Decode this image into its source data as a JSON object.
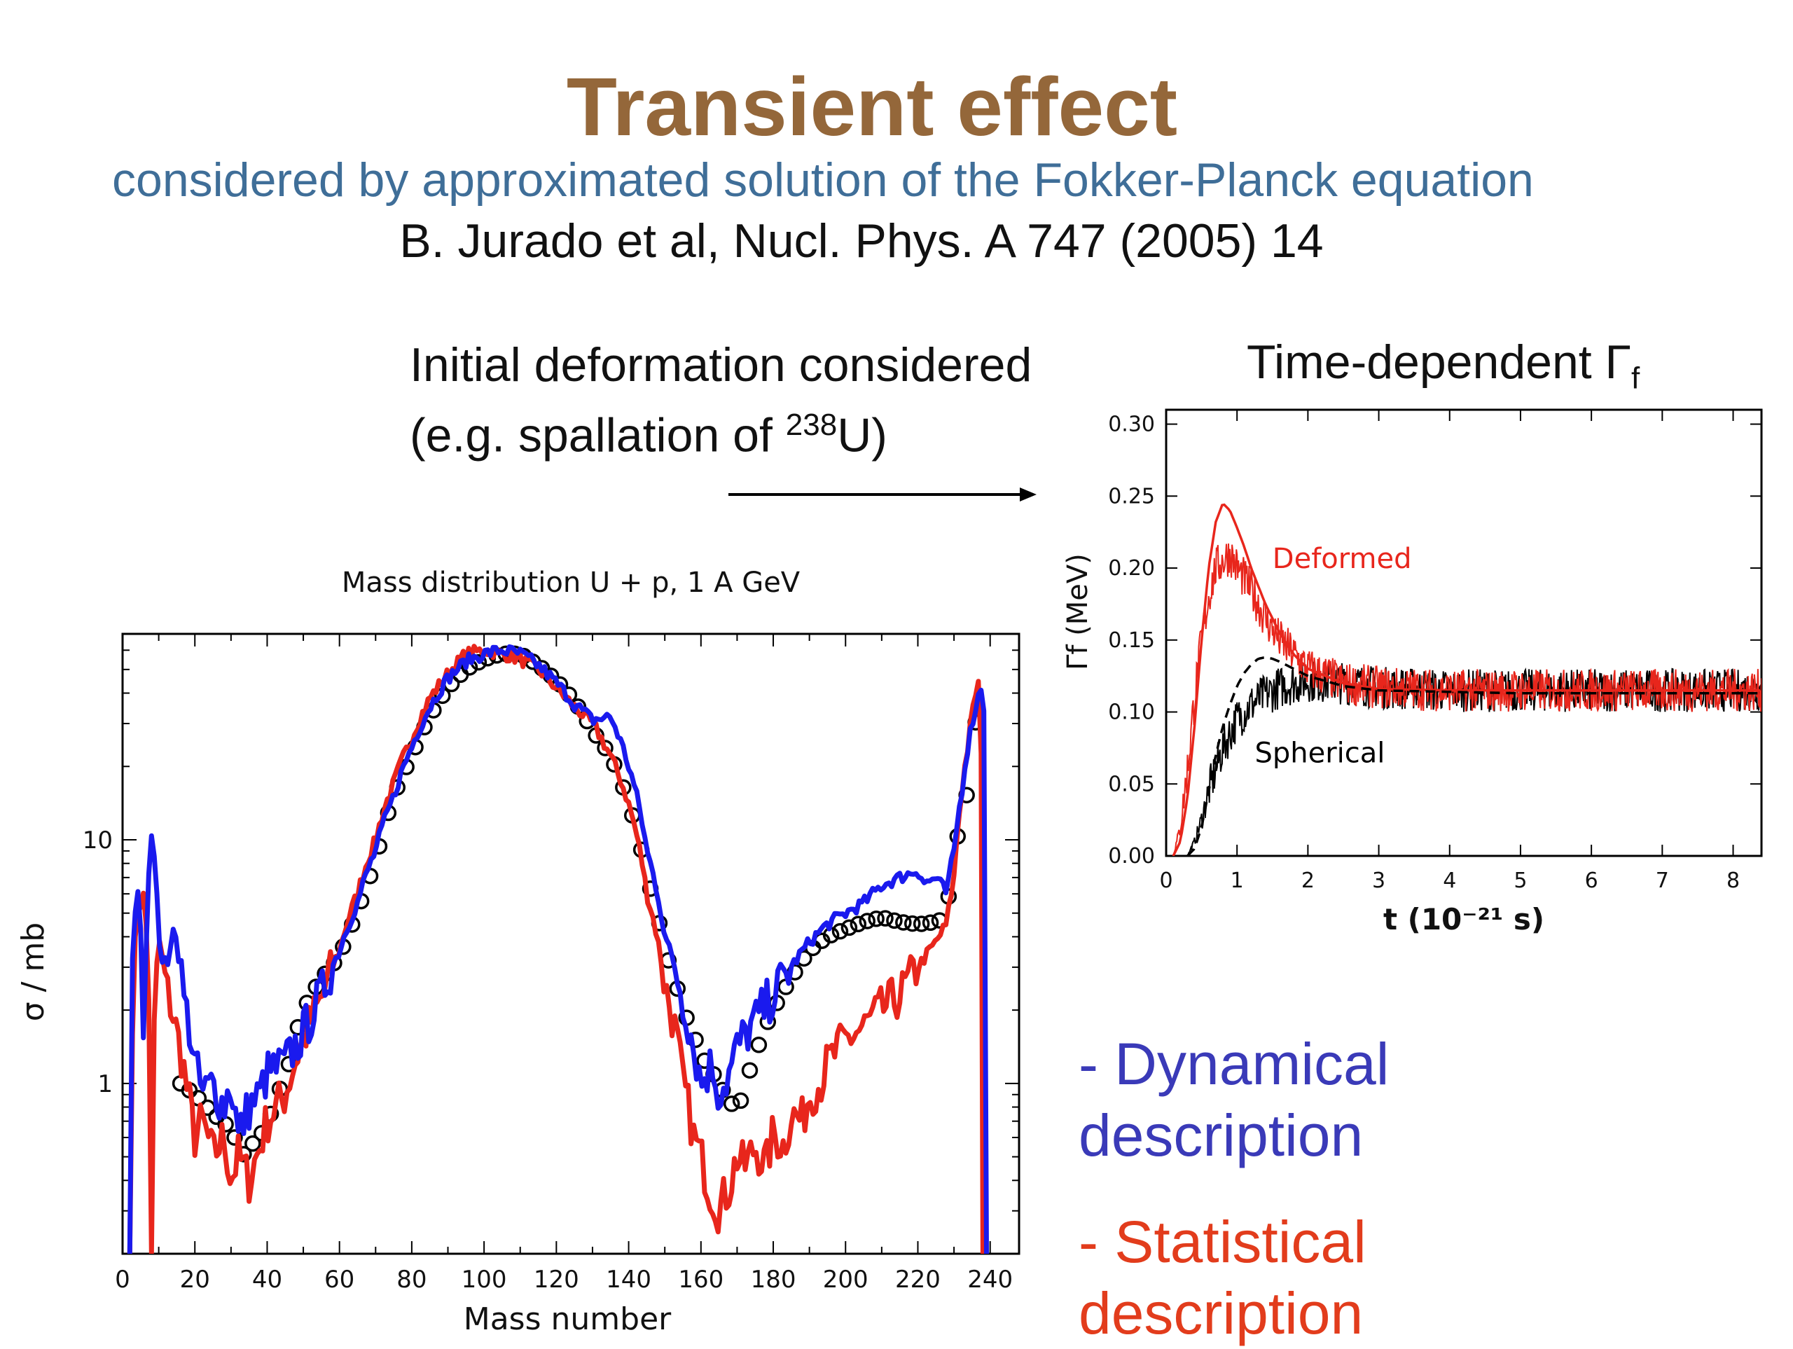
{
  "slide": {
    "title": "Transient effect",
    "subtitle": "considered by approximated solution of the Fokker-Planck equation",
    "reference": "B. Jurado et al,  Nucl. Phys. A 747 (2005) 14",
    "note_line1": "Initial deformation considered",
    "note_line2_pre": "(e.g. spallation of ",
    "note_line2_sup": "238",
    "note_line2_post": "U)",
    "gamma_title": "Time-dependent Γ",
    "gamma_title_sub": "f",
    "legend_dynamical_1": "- Dynamical",
    "legend_dynamical_2": "description",
    "legend_statistical_1": "- Statistical",
    "legend_statistical_2": "description"
  },
  "colors": {
    "title": "#94673a",
    "subtitle": "#3f6e98",
    "dynamical": "#3a3ab8",
    "statistical": "#e23c1c"
  },
  "chart_data": [
    {
      "type": "line",
      "title": "Mass distribution U + p, 1 A GeV",
      "xlabel": "Mass number",
      "ylabel": "σ / mb",
      "xlim": [
        0,
        248
      ],
      "ylim": [
        0.2,
        70
      ],
      "log_y": true,
      "x_ticks": [
        0,
        20,
        40,
        60,
        80,
        100,
        120,
        140,
        160,
        180,
        200,
        220,
        240
      ],
      "y_ticks": [
        {
          "v": 1,
          "label": "1"
        },
        {
          "v": 10,
          "label": "10"
        }
      ],
      "series": [
        {
          "style": "circles",
          "color": "#000000",
          "x": [
            16,
            20,
            25,
            30,
            33,
            35,
            38,
            42,
            46,
            50,
            55,
            60,
            65,
            70,
            75,
            80,
            85,
            90,
            95,
            100,
            105,
            110,
            115,
            120,
            125,
            130,
            135,
            140,
            145,
            150,
            155,
            160,
            165,
            168,
            171,
            175,
            180,
            185,
            190,
            195,
            200,
            205,
            210,
            215,
            220,
            225,
            228,
            230,
            233,
            235,
            238
          ],
          "y": [
            1.0,
            0.9,
            0.75,
            0.65,
            0.5,
            0.55,
            0.6,
            0.8,
            1.2,
            2.0,
            2.7,
            3.3,
            5.0,
            8.0,
            15,
            22,
            32,
            42,
            50,
            55,
            58,
            58,
            52,
            45,
            37,
            28,
            22,
            14,
            7,
            3.5,
            2.0,
            1.3,
            1.0,
            0.82,
            0.85,
            1.3,
            2.0,
            2.7,
            3.5,
            4.0,
            4.3,
            4.6,
            4.8,
            4.6,
            4.5,
            4.6,
            4.8,
            9,
            13,
            22,
            47
          ]
        },
        {
          "style": "line",
          "color": "#e8261c",
          "name": "Statistical",
          "x": [
            2,
            4,
            6,
            8,
            10,
            12,
            15,
            18,
            20,
            22,
            25,
            28,
            30,
            32,
            35,
            38,
            40,
            45,
            50,
            55,
            60,
            65,
            70,
            75,
            80,
            85,
            90,
            95,
            100,
            105,
            110,
            115,
            120,
            125,
            130,
            135,
            140,
            145,
            150,
            155,
            158,
            160,
            162,
            165,
            168,
            170,
            172,
            175,
            178,
            180,
            183,
            185,
            188,
            190,
            193,
            195,
            200,
            205,
            210,
            215,
            218,
            220,
            222,
            225,
            228,
            230,
            232,
            234,
            236,
            237,
            238
          ],
          "y": [
            0.2,
            5,
            6,
            0.2,
            4,
            2.5,
            1.6,
            0.9,
            0.6,
            0.7,
            0.5,
            0.6,
            0.4,
            0.5,
            0.4,
            0.55,
            0.7,
            0.9,
            1.5,
            2.2,
            3.5,
            6,
            10,
            17,
            26,
            38,
            48,
            58,
            60,
            58,
            55,
            50,
            42,
            35,
            30,
            22,
            14,
            6,
            2.5,
            1.0,
            0.6,
            0.5,
            0.38,
            0.3,
            0.38,
            0.5,
            0.45,
            0.55,
            0.45,
            0.62,
            0.55,
            0.75,
            0.7,
            0.9,
            1.0,
            1.2,
            1.5,
            1.7,
            2.0,
            2.3,
            2.7,
            3.0,
            3.3,
            3.8,
            4.5,
            7,
            15,
            25,
            40,
            45,
            0.2
          ]
        },
        {
          "style": "line",
          "color": "#1a1aee",
          "name": "Dynamical",
          "x": [
            2,
            4,
            6,
            8,
            10,
            12,
            14,
            17,
            20,
            22,
            25,
            28,
            30,
            32,
            35,
            38,
            40,
            45,
            50,
            55,
            60,
            65,
            70,
            75,
            80,
            85,
            90,
            95,
            100,
            105,
            110,
            115,
            120,
            125,
            130,
            135,
            140,
            145,
            150,
            155,
            158,
            160,
            163,
            165,
            168,
            170,
            175,
            180,
            185,
            190,
            195,
            200,
            205,
            210,
            215,
            220,
            222,
            225,
            228,
            230,
            232,
            234,
            236,
            238,
            239
          ],
          "y": [
            0.2,
            7,
            1.2,
            11,
            4,
            2.5,
            4.5,
            2.2,
            1.2,
            0.9,
            1.0,
            0.8,
            1.0,
            0.6,
            0.8,
            0.9,
            1.1,
            1.2,
            1.6,
            2.3,
            3.5,
            5.5,
            9,
            15,
            24,
            35,
            46,
            54,
            58,
            60,
            58,
            52,
            44,
            36,
            31,
            32,
            20,
            9,
            4,
            2.2,
            1.4,
            1.0,
            1.2,
            0.9,
            1.1,
            1.4,
            1.8,
            2.3,
            3.0,
            3.8,
            4.5,
            5.0,
            5.5,
            6.5,
            7.0,
            7.5,
            6.6,
            7.0,
            6.0,
            9,
            15,
            25,
            35,
            45,
            0.2
          ]
        }
      ]
    },
    {
      "type": "line",
      "xlabel": "t (10⁻²¹ s)",
      "ylabel": "Γf (MeV)",
      "xlim": [
        0,
        8.4
      ],
      "ylim": [
        0,
        0.31
      ],
      "x_ticks": [
        0,
        1,
        2,
        3,
        4,
        5,
        6,
        7,
        8
      ],
      "y_ticks": [
        0.0,
        0.05,
        0.1,
        0.15,
        0.2,
        0.25,
        0.3
      ],
      "y_tick_labels": [
        "0.00",
        "0.05",
        "0.10",
        "0.15",
        "0.20",
        "0.25",
        "0.30"
      ],
      "annotations": [
        {
          "text": "Deformed",
          "x": 1.5,
          "y": 0.2,
          "color": "#e8261c"
        },
        {
          "text": "Spherical",
          "x": 1.25,
          "y": 0.065,
          "color": "#000000"
        }
      ],
      "series": [
        {
          "style": "noisy",
          "color": "#000000",
          "name": "Spherical",
          "x": [
            0.3,
            0.4,
            0.5,
            0.6,
            0.7,
            0.8,
            0.9,
            1.0,
            1.2,
            1.4,
            1.6,
            1.8,
            2.0,
            2.5,
            3,
            4,
            5,
            6,
            7,
            8,
            8.4
          ],
          "y": [
            0,
            0.01,
            0.025,
            0.045,
            0.06,
            0.075,
            0.085,
            0.095,
            0.105,
            0.112,
            0.117,
            0.12,
            0.122,
            0.12,
            0.117,
            0.115,
            0.115,
            0.115,
            0.115,
            0.115,
            0.115
          ]
        },
        {
          "style": "noisy",
          "color": "#e8261c",
          "name": "Deformed noisy",
          "x": [
            0.1,
            0.2,
            0.3,
            0.4,
            0.5,
            0.6,
            0.7,
            0.8,
            0.9,
            1.0,
            1.2,
            1.4,
            1.6,
            1.8,
            2.0,
            2.5,
            3,
            4,
            5,
            6,
            7,
            8,
            8.4
          ],
          "y": [
            0,
            0.02,
            0.06,
            0.11,
            0.15,
            0.18,
            0.2,
            0.205,
            0.21,
            0.2,
            0.185,
            0.165,
            0.15,
            0.14,
            0.13,
            0.12,
            0.117,
            0.115,
            0.115,
            0.115,
            0.115,
            0.115,
            0.115
          ]
        },
        {
          "style": "smooth",
          "color": "#e8261c",
          "name": "Deformed smooth",
          "x": [
            0.1,
            0.2,
            0.3,
            0.4,
            0.5,
            0.6,
            0.7,
            0.8,
            0.9,
            1.0,
            1.1,
            1.2,
            1.4,
            1.6,
            1.8,
            2.0,
            2.5,
            3,
            4,
            5,
            6,
            7,
            8,
            8.4
          ],
          "y": [
            0,
            0.01,
            0.04,
            0.09,
            0.15,
            0.2,
            0.232,
            0.245,
            0.24,
            0.228,
            0.215,
            0.2,
            0.175,
            0.155,
            0.14,
            0.13,
            0.12,
            0.116,
            0.115,
            0.115,
            0.115,
            0.115,
            0.115,
            0.115
          ]
        },
        {
          "style": "dashed",
          "color": "#000000",
          "name": "Spherical smooth",
          "x": [
            0.3,
            0.4,
            0.5,
            0.6,
            0.7,
            0.8,
            0.9,
            1.0,
            1.1,
            1.2,
            1.3,
            1.4,
            1.5,
            1.6,
            1.8,
            2.0,
            2.5,
            3,
            4,
            5,
            6,
            7,
            8,
            8.4
          ],
          "y": [
            0,
            0.005,
            0.02,
            0.045,
            0.07,
            0.09,
            0.105,
            0.118,
            0.127,
            0.133,
            0.137,
            0.138,
            0.137,
            0.135,
            0.13,
            0.125,
            0.118,
            0.115,
            0.114,
            0.113,
            0.113,
            0.113,
            0.113,
            0.113
          ]
        }
      ]
    }
  ]
}
